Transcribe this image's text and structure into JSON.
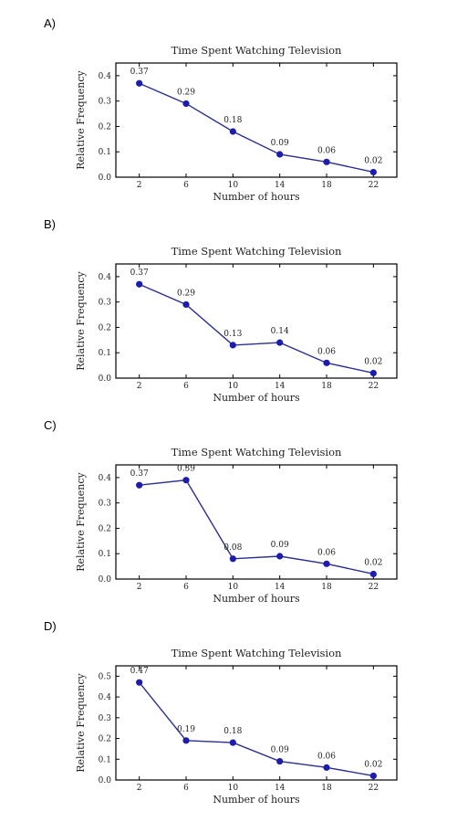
{
  "page": {
    "panels": [
      {
        "label": "A)"
      },
      {
        "label": "B)"
      },
      {
        "label": "C)"
      },
      {
        "label": "D)"
      }
    ]
  },
  "colors": {
    "line": "#2b2f8f",
    "marker": "#1c1cae",
    "axis": "#000000"
  },
  "chart_data": [
    {
      "type": "line",
      "title": "Time Spent Watching Television",
      "xlabel": "Number of hours",
      "ylabel": "Relative Frequency",
      "x": [
        2,
        6,
        10,
        14,
        18,
        22
      ],
      "series": [
        {
          "values": [
            0.37,
            0.29,
            0.18,
            0.09,
            0.06,
            0.02
          ]
        }
      ],
      "labels": [
        "0.37",
        "0.29",
        "0.18",
        "0.09",
        "0.06",
        "0.02"
      ],
      "xlim": [
        0,
        24
      ],
      "ylim": [
        0,
        0.45
      ],
      "yticks": [
        0.0,
        0.1,
        0.2,
        0.3,
        0.4
      ],
      "ytick_labels": [
        "0.0",
        "0.1",
        "0.2",
        "0.3",
        "0.4"
      ],
      "xtick_labels": [
        "2",
        "6",
        "10",
        "14",
        "18",
        "22"
      ],
      "grid": false
    },
    {
      "type": "line",
      "title": "Time Spent Watching Television",
      "xlabel": "Number of hours",
      "ylabel": "Relative Frequency",
      "x": [
        2,
        6,
        10,
        14,
        18,
        22
      ],
      "series": [
        {
          "values": [
            0.37,
            0.29,
            0.13,
            0.14,
            0.06,
            0.02
          ]
        }
      ],
      "labels": [
        "0.37",
        "0.29",
        "0.13",
        "0.14",
        "0.06",
        "0.02"
      ],
      "xlim": [
        0,
        24
      ],
      "ylim": [
        0,
        0.45
      ],
      "yticks": [
        0.0,
        0.1,
        0.2,
        0.3,
        0.4
      ],
      "ytick_labels": [
        "0.0",
        "0.1",
        "0.2",
        "0.3",
        "0.4"
      ],
      "xtick_labels": [
        "2",
        "6",
        "10",
        "14",
        "18",
        "22"
      ],
      "grid": false
    },
    {
      "type": "line",
      "title": "Time Spent Watching Television",
      "xlabel": "Number of hours",
      "ylabel": "Relative Frequency",
      "x": [
        2,
        6,
        10,
        14,
        18,
        22
      ],
      "series": [
        {
          "values": [
            0.37,
            0.39,
            0.08,
            0.09,
            0.06,
            0.02
          ]
        }
      ],
      "labels": [
        "0.37",
        "0.39",
        "0.08",
        "0.09",
        "0.06",
        "0.02"
      ],
      "xlim": [
        0,
        24
      ],
      "ylim": [
        0,
        0.45
      ],
      "yticks": [
        0.0,
        0.1,
        0.2,
        0.3,
        0.4
      ],
      "ytick_labels": [
        "0.0",
        "0.1",
        "0.2",
        "0.3",
        "0.4"
      ],
      "xtick_labels": [
        "2",
        "6",
        "10",
        "14",
        "18",
        "22"
      ],
      "grid": false
    },
    {
      "type": "line",
      "title": "Time Spent Watching Television",
      "xlabel": "Number of hours",
      "ylabel": "Relative Frequency",
      "x": [
        2,
        6,
        10,
        14,
        18,
        22
      ],
      "series": [
        {
          "values": [
            0.47,
            0.19,
            0.18,
            0.09,
            0.06,
            0.02
          ]
        }
      ],
      "labels": [
        "0.47",
        "0.19",
        "0.18",
        "0.09",
        "0.06",
        "0.02"
      ],
      "xlim": [
        0,
        24
      ],
      "ylim": [
        0,
        0.55
      ],
      "yticks": [
        0.0,
        0.1,
        0.2,
        0.3,
        0.4,
        0.5
      ],
      "ytick_labels": [
        "0.0",
        "0.1",
        "0.2",
        "0.3",
        "0.4",
        "0.5"
      ],
      "xtick_labels": [
        "2",
        "6",
        "10",
        "14",
        "18",
        "22"
      ],
      "grid": false
    }
  ]
}
